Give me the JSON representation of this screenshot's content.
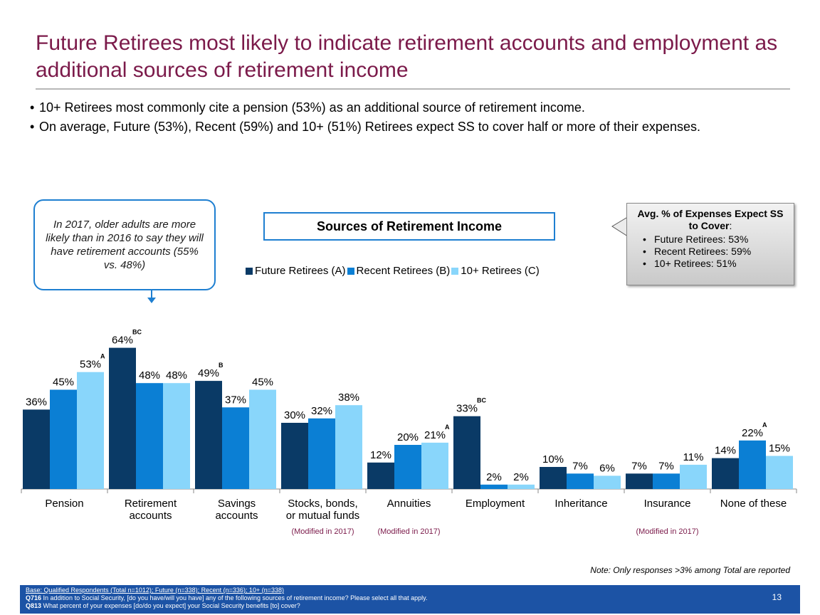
{
  "title": "Future Retirees most likely to indicate retirement accounts and employment as additional sources of retirement income",
  "bullets": [
    "10+ Retirees most commonly cite a pension (53%) as an additional source of retirement income.",
    "On average, Future (53%), Recent (59%) and 10+ (51%) Retirees expect SS to cover half or more of their expenses."
  ],
  "callout": "In 2017, older adults are more likely than in 2016 to say they will have retirement accounts (55% vs. 48%)",
  "info_box": {
    "title": "Avg. % of Expenses Expect SS to Cover",
    "title_suffix": ":",
    "items": [
      "Future Retirees:  53%",
      "Recent Retirees:  59%",
      "10+ Retirees:  51%"
    ]
  },
  "note": "Note: Only responses >3% among Total are reported",
  "footer": {
    "base": "Base: Qualified Respondents (Total n=1012); Future (n=338); Recent (n=336); 10+ (n=338)",
    "q716_label": "Q716",
    "q716_text": " In addition to Social Security, [do you have/will you have] any of the following sources of retirement income?  Please select all that apply.",
    "q813_label": "Q813",
    "q813_text": " What percent of your expenses [do/do you expect] your Social Security benefits [to] cover?",
    "page_number": "13"
  },
  "colors": {
    "future": "#0a3a66",
    "recent": "#0b7fd4",
    "ten_plus": "#89d6fb",
    "title": "#7b1a4a",
    "accent_blue": "#1e7fd1",
    "footer_bg": "#1c53a5",
    "modified_note": "#7b1a4a"
  },
  "chart_data": {
    "type": "bar",
    "title": "Sources of Retirement Income",
    "categories": [
      "Pension",
      "Retirement accounts",
      "Savings accounts",
      "Stocks, bonds, or mutual funds",
      "Annuities",
      "Employment",
      "Inheritance",
      "Insurance",
      "None of these"
    ],
    "category_lines": [
      [
        "Pension"
      ],
      [
        "Retirement",
        "accounts"
      ],
      [
        "Savings",
        "accounts"
      ],
      [
        "Stocks, bonds,",
        "or mutual funds"
      ],
      [
        "Annuities"
      ],
      [
        "Employment"
      ],
      [
        "Inheritance"
      ],
      [
        "Insurance"
      ],
      [
        "None of these"
      ]
    ],
    "series": [
      {
        "name": "Future Retirees (A)",
        "values": [
          36,
          64,
          49,
          30,
          12,
          33,
          10,
          7,
          14
        ]
      },
      {
        "name": "Recent Retirees (B)",
        "values": [
          45,
          48,
          37,
          32,
          20,
          2,
          7,
          7,
          22
        ]
      },
      {
        "name": "10+ Retirees (C)",
        "values": [
          53,
          48,
          45,
          38,
          21,
          2,
          6,
          11,
          15
        ]
      }
    ],
    "value_suffix": "%",
    "significance": [
      {
        "category": 0,
        "series": 2,
        "label": "A"
      },
      {
        "category": 1,
        "series": 0,
        "label": "BC"
      },
      {
        "category": 2,
        "series": 0,
        "label": "B"
      },
      {
        "category": 4,
        "series": 2,
        "label": "A"
      },
      {
        "category": 5,
        "series": 0,
        "label": "BC"
      },
      {
        "category": 8,
        "series": 1,
        "label": "A"
      }
    ],
    "modified_notes": [
      {
        "category": 3,
        "text": "(Modified in 2017)"
      },
      {
        "category": 4,
        "text": "(Modified in 2017)"
      },
      {
        "category": 7,
        "text": "(Modified in 2017)"
      }
    ],
    "ylim": [
      0,
      70
    ],
    "legend_position": "top-center",
    "grid": false
  }
}
